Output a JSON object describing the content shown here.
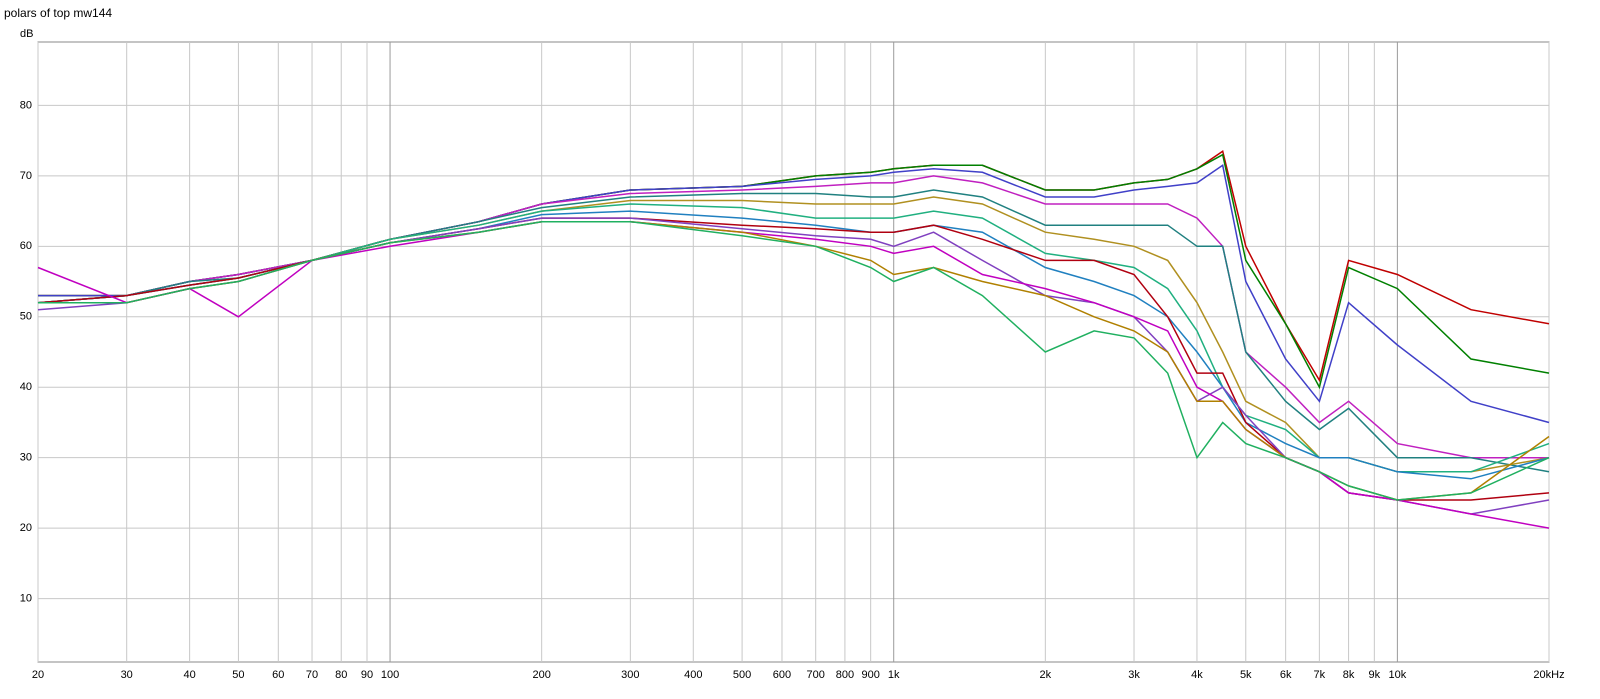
{
  "chart_data": {
    "type": "line",
    "title": "polars of top mw144",
    "y_label": "dB",
    "log_x": true,
    "grid": true,
    "x": [
      20,
      30,
      40,
      50,
      70,
      100,
      150,
      200,
      300,
      500,
      700,
      900,
      1000,
      1200,
      1500,
      2000,
      2500,
      3000,
      3500,
      4000,
      4500,
      5000,
      6000,
      7000,
      8000,
      10000,
      14000,
      20000
    ],
    "xlim": [
      20,
      20000
    ],
    "xticks": [
      20,
      30,
      40,
      50,
      60,
      70,
      80,
      90,
      100,
      200,
      300,
      400,
      500,
      600,
      700,
      800,
      900,
      {
        "value": 1000,
        "label": "1k"
      },
      {
        "value": 2000,
        "label": "2k"
      },
      {
        "value": 3000,
        "label": "3k"
      },
      {
        "value": 4000,
        "label": "4k"
      },
      {
        "value": 5000,
        "label": "5k"
      },
      {
        "value": 6000,
        "label": "6k"
      },
      {
        "value": 7000,
        "label": "7k"
      },
      {
        "value": 8000,
        "label": "8k"
      },
      {
        "value": 9000,
        "label": "9k"
      },
      {
        "value": 10000,
        "label": "10k"
      },
      {
        "value": 20000,
        "label": "20kHz"
      }
    ],
    "ylim": [
      1,
      89
    ],
    "yticks": [
      10,
      20,
      30,
      40,
      50,
      60,
      70,
      80
    ],
    "series": [
      {
        "color": "#c00000",
        "values": [
          53,
          53,
          55,
          56,
          58,
          61,
          63.5,
          66,
          68,
          68.5,
          70,
          70.5,
          71,
          71.5,
          71.5,
          68,
          68,
          69,
          69.5,
          71,
          73.5,
          60,
          49,
          41,
          58,
          56,
          51,
          49
        ]
      },
      {
        "color": "#008000",
        "values": [
          53,
          53,
          55,
          56,
          58,
          61,
          63.5,
          66,
          68,
          68.5,
          70,
          70.5,
          71,
          71.5,
          71.5,
          68,
          68,
          69,
          69.5,
          71,
          73,
          58,
          49,
          40,
          57,
          54,
          44,
          42
        ]
      },
      {
        "color": "#4040c8",
        "values": [
          53,
          53,
          55,
          56,
          58,
          61,
          63.5,
          66,
          68,
          68.5,
          69.5,
          70,
          70.5,
          71,
          70.5,
          67,
          67,
          68,
          68.5,
          69,
          71.5,
          55,
          44,
          38,
          52,
          46,
          38,
          35
        ]
      },
      {
        "color": "#c020c0",
        "values": [
          52,
          53,
          55,
          56,
          58,
          61,
          63.5,
          66,
          67.5,
          68,
          68.5,
          69,
          69,
          70,
          69,
          66,
          66,
          66,
          66,
          64,
          60,
          45,
          40,
          35,
          38,
          32,
          30,
          30
        ]
      },
      {
        "color": "#208080",
        "values": [
          52,
          53,
          55,
          55.5,
          58,
          61,
          63.5,
          65.5,
          67,
          67.5,
          67.5,
          67,
          67,
          68,
          67,
          63,
          63,
          63,
          63,
          60,
          60,
          45,
          38,
          34,
          37,
          30,
          30,
          28
        ]
      },
      {
        "color": "#b09020",
        "values": [
          52,
          53,
          54.5,
          55.5,
          58,
          61,
          63,
          65,
          66.5,
          66.5,
          66,
          66,
          66,
          67,
          66,
          62,
          61,
          60,
          58,
          52,
          45,
          38,
          35,
          30,
          30,
          28,
          28,
          30
        ]
      },
      {
        "color": "#20b080",
        "values": [
          52,
          53,
          54.5,
          55.5,
          58,
          61,
          63,
          65,
          66,
          65.5,
          64,
          64,
          64,
          65,
          64,
          59,
          58,
          57,
          54,
          48,
          40,
          36,
          34,
          30,
          30,
          28,
          28,
          32
        ]
      },
      {
        "color": "#2080c0",
        "values": [
          52,
          53,
          54.5,
          55.5,
          58,
          60.5,
          62.5,
          64.5,
          65,
          64,
          63,
          62,
          62,
          63,
          62,
          57,
          55,
          53,
          50,
          45,
          40,
          35,
          32,
          30,
          30,
          28,
          27,
          30
        ]
      },
      {
        "color": "#b00010",
        "values": [
          52,
          53,
          54.5,
          55.5,
          58,
          60.5,
          62.5,
          64,
          64,
          63,
          62.5,
          62,
          62,
          63,
          61,
          58,
          58,
          56,
          50,
          42,
          42,
          35,
          30,
          28,
          25,
          24,
          24,
          25
        ]
      },
      {
        "color": "#8040c0",
        "values": [
          51,
          52,
          54,
          55,
          58,
          60.5,
          62.5,
          64,
          64,
          62.5,
          61.5,
          61,
          60,
          62,
          58,
          53,
          52,
          50,
          45,
          38,
          40,
          36,
          30,
          28,
          25,
          24,
          22,
          24
        ]
      },
      {
        "color": "#c000c0",
        "values": [
          57,
          52,
          54,
          50,
          58,
          60,
          62,
          63.5,
          63.5,
          62,
          61,
          60,
          59,
          60,
          56,
          54,
          52,
          50,
          48,
          40,
          38,
          34,
          30,
          28,
          25,
          24,
          22,
          20
        ]
      },
      {
        "color": "#b08000",
        "values": [
          52,
          52,
          54,
          55,
          58,
          60.5,
          62,
          63.5,
          63.5,
          62,
          60,
          58,
          56,
          57,
          55,
          53,
          50,
          48,
          45,
          38,
          38,
          34,
          30,
          28,
          26,
          24,
          25,
          33
        ]
      },
      {
        "color": "#20b060",
        "values": [
          52,
          52,
          54,
          55,
          58,
          60.5,
          62,
          63.5,
          63.5,
          61.5,
          60,
          57,
          55,
          57,
          53,
          45,
          48,
          47,
          42,
          30,
          35,
          32,
          30,
          28,
          26,
          24,
          25,
          30
        ]
      }
    ]
  }
}
